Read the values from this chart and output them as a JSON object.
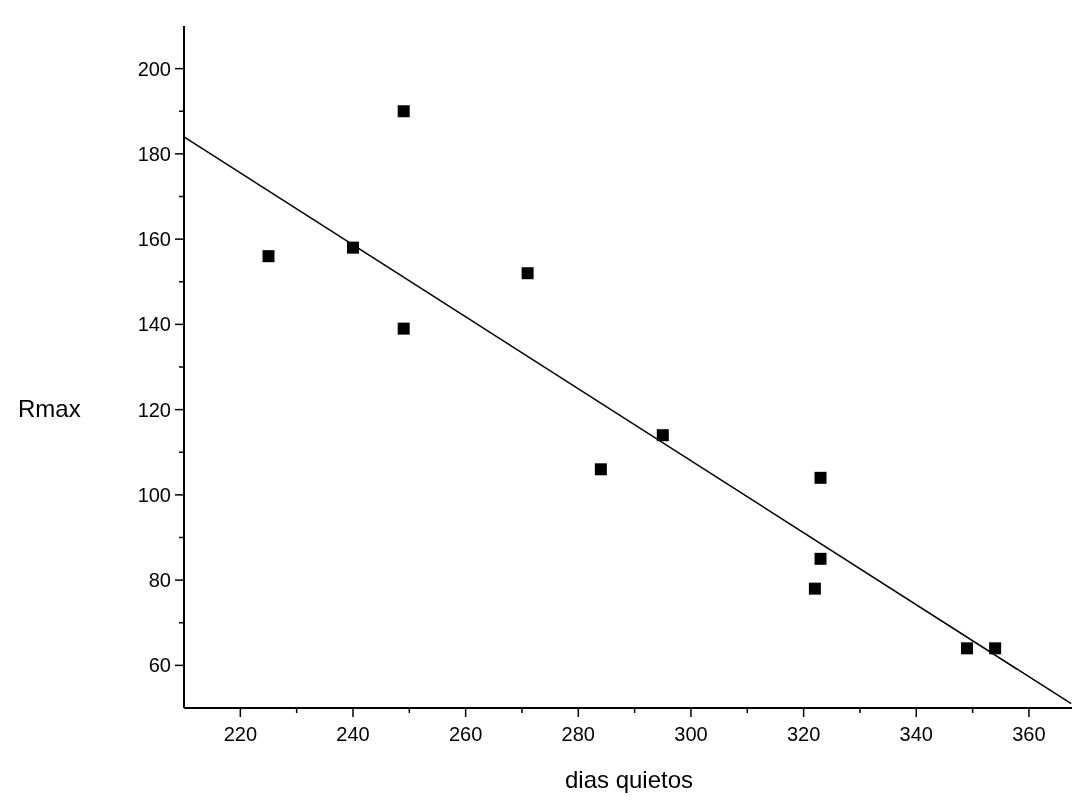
{
  "chart_data": {
    "type": "scatter",
    "xlabel": "dias quietos",
    "ylabel": "Rmax",
    "marker": "square",
    "xlim": [
      210,
      368
    ],
    "ylim": [
      50,
      210
    ],
    "xticks": [
      220,
      {
        "value": 230,
        "label": null
      },
      240,
      {
        "value": 250,
        "label": null
      },
      260,
      {
        "value": 270,
        "label": null
      },
      280,
      {
        "value": 290,
        "label": null
      },
      300,
      {
        "value": 310,
        "label": null
      },
      320,
      {
        "value": 330,
        "label": null
      },
      340,
      {
        "value": 350,
        "label": null
      },
      360
    ],
    "yticks": [
      {
        "value": 70,
        "label": null
      },
      60,
      80,
      {
        "value": 90,
        "label": null
      },
      100,
      {
        "value": 110,
        "label": null
      },
      120,
      {
        "value": 130,
        "label": null
      },
      140,
      {
        "value": 150,
        "label": null
      },
      160,
      {
        "value": 170,
        "label": null
      },
      180,
      {
        "value": 190,
        "label": null
      },
      200
    ],
    "series": [
      {
        "color": "#000000",
        "x": [
          225,
          240,
          249,
          249,
          271,
          284,
          295,
          323,
          323,
          322,
          349,
          354
        ],
        "values": [
          156,
          158,
          190,
          139,
          152,
          106,
          114,
          104,
          85,
          78,
          64,
          64
        ]
      },
      {
        "type": "line",
        "color": "#000000",
        "marker": "none",
        "line_style": "solid",
        "x": [
          210,
          367.5
        ],
        "values": [
          184,
          51
        ]
      }
    ]
  }
}
